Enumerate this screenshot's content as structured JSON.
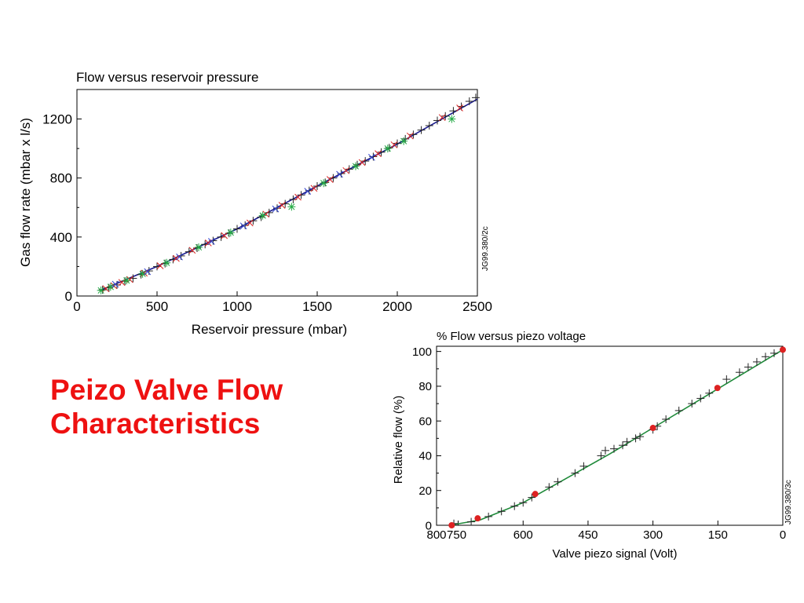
{
  "slide": {
    "title_line1": "Peizo Valve Flow",
    "title_line2": "Characteristics"
  },
  "colors": {
    "title": "#ee1111",
    "fit_line_chart1": "#1a1a8c",
    "fit_line_chart2": "#1f8a3a",
    "marker_red": "#dd2222",
    "marker_green": "#22aa44",
    "marker_black": "#222222"
  },
  "chart_data": [
    {
      "type": "scatter",
      "title": "Flow versus reservoir pressure",
      "xlabel": "Reservoir pressure (mbar)",
      "ylabel": "Gas flow rate (mbar x l/s)",
      "side_label": "JG99.380/2c",
      "xlim": [
        0,
        2500
      ],
      "ylim": [
        0,
        1400
      ],
      "xticks": [
        0,
        500,
        1000,
        1500,
        2000,
        2500
      ],
      "yticks": [
        0,
        400,
        800,
        1200
      ],
      "grid": false,
      "legend": "none",
      "fit_line": [
        [
          150,
          40
        ],
        [
          500,
          200
        ],
        [
          1000,
          455
        ],
        [
          1500,
          745
        ],
        [
          2000,
          1030
        ],
        [
          2500,
          1335
        ]
      ],
      "series": [
        {
          "marker": "plus",
          "color": "#222222",
          "points": [
            [
              160,
              42
            ],
            [
              200,
              55
            ],
            [
              250,
              75
            ],
            [
              300,
              100
            ],
            [
              350,
              120
            ],
            [
              400,
              145
            ],
            [
              450,
              170
            ],
            [
              500,
              200
            ],
            [
              550,
              220
            ],
            [
              600,
              248
            ],
            [
              650,
              272
            ],
            [
              700,
              300
            ],
            [
              750,
              325
            ],
            [
              800,
              350
            ],
            [
              850,
              375
            ],
            [
              900,
              400
            ],
            [
              950,
              425
            ],
            [
              1000,
              455
            ],
            [
              1050,
              480
            ],
            [
              1100,
              510
            ],
            [
              1150,
              535
            ],
            [
              1200,
              565
            ],
            [
              1250,
              595
            ],
            [
              1300,
              625
            ],
            [
              1350,
              655
            ],
            [
              1400,
              685
            ],
            [
              1450,
              715
            ],
            [
              1500,
              745
            ],
            [
              1550,
              770
            ],
            [
              1600,
              800
            ],
            [
              1650,
              830
            ],
            [
              1700,
              860
            ],
            [
              1750,
              890
            ],
            [
              1800,
              915
            ],
            [
              1850,
              945
            ],
            [
              1900,
              975
            ],
            [
              1950,
              1005
            ],
            [
              2000,
              1035
            ],
            [
              2050,
              1065
            ],
            [
              2100,
              1095
            ],
            [
              2150,
              1125
            ],
            [
              2200,
              1155
            ],
            [
              2250,
              1190
            ],
            [
              2300,
              1220
            ],
            [
              2350,
              1255
            ],
            [
              2400,
              1285
            ],
            [
              2450,
              1320
            ],
            [
              2490,
              1345
            ]
          ]
        },
        {
          "marker": "cross",
          "color": "#dd2222",
          "points": [
            [
              180,
              50
            ],
            [
              230,
              70
            ],
            [
              280,
              92
            ],
            [
              330,
              112
            ],
            [
              420,
              155
            ],
            [
              520,
              205
            ],
            [
              620,
              255
            ],
            [
              720,
              310
            ],
            [
              820,
              360
            ],
            [
              920,
              410
            ],
            [
              1080,
              495
            ],
            [
              1180,
              555
            ],
            [
              1280,
              615
            ],
            [
              1380,
              670
            ],
            [
              1480,
              730
            ],
            [
              1580,
              790
            ],
            [
              1680,
              850
            ],
            [
              1780,
              905
            ],
            [
              1880,
              965
            ],
            [
              1980,
              1025
            ],
            [
              2080,
              1085
            ],
            [
              2280,
              1210
            ],
            [
              2390,
              1275
            ]
          ]
        },
        {
          "marker": "asterisk",
          "color": "#22aa44",
          "points": [
            [
              150,
              38
            ],
            [
              210,
              62
            ],
            [
              310,
              105
            ],
            [
              410,
              150
            ],
            [
              560,
              225
            ],
            [
              760,
              330
            ],
            [
              960,
              430
            ],
            [
              1160,
              545
            ],
            [
              1340,
              605
            ],
            [
              1540,
              765
            ],
            [
              1740,
              880
            ],
            [
              1940,
              1000
            ],
            [
              2040,
              1050
            ],
            [
              2340,
              1200
            ]
          ]
        },
        {
          "marker": "cross",
          "color": "#3344cc",
          "points": [
            [
              240,
              80
            ],
            [
              440,
              165
            ],
            [
              640,
              265
            ],
            [
              840,
              370
            ],
            [
              1040,
              475
            ],
            [
              1240,
              590
            ],
            [
              1440,
              710
            ],
            [
              1640,
              825
            ],
            [
              1840,
              940
            ]
          ]
        }
      ]
    },
    {
      "type": "scatter",
      "title": "% Flow versus piezo voltage",
      "xlabel": "Valve piezo signal (Volt)",
      "ylabel": "Relative flow (%)",
      "side_label": "JG99.380/3c",
      "xlim": [
        800,
        0
      ],
      "ylim": [
        0,
        103
      ],
      "xticks": [
        800,
        750,
        600,
        450,
        300,
        150,
        0
      ],
      "yticks": [
        0,
        20,
        40,
        60,
        80,
        100
      ],
      "grid": false,
      "legend": "none",
      "fit_line": [
        [
          770,
          0
        ],
        [
          700,
          3
        ],
        [
          600,
          13
        ],
        [
          500,
          27
        ],
        [
          400,
          41
        ],
        [
          300,
          56
        ],
        [
          200,
          71
        ],
        [
          100,
          86
        ],
        [
          0,
          101
        ]
      ],
      "series": [
        {
          "marker": "plus",
          "color": "#222222",
          "points": [
            [
              760,
              1
            ],
            [
              720,
              2
            ],
            [
              680,
              5
            ],
            [
              650,
              8
            ],
            [
              620,
              11
            ],
            [
              600,
              13
            ],
            [
              580,
              16
            ],
            [
              540,
              22
            ],
            [
              520,
              25
            ],
            [
              480,
              30
            ],
            [
              460,
              34
            ],
            [
              420,
              40
            ],
            [
              410,
              43
            ],
            [
              390,
              44
            ],
            [
              370,
              46
            ],
            [
              360,
              48
            ],
            [
              340,
              50
            ],
            [
              330,
              51
            ],
            [
              300,
              55
            ],
            [
              290,
              57
            ],
            [
              270,
              61
            ],
            [
              240,
              66
            ],
            [
              210,
              70
            ],
            [
              190,
              73
            ],
            [
              170,
              76
            ],
            [
              130,
              84
            ],
            [
              100,
              88
            ],
            [
              80,
              91
            ],
            [
              60,
              94
            ],
            [
              40,
              97
            ],
            [
              20,
              99
            ]
          ]
        },
        {
          "marker": "dot",
          "color": "#dd2222",
          "points": [
            [
              765,
              0
            ],
            [
              705,
              4
            ],
            [
              572,
              18
            ],
            [
              300,
              56
            ],
            [
              151,
              79
            ],
            [
              0,
              101
            ]
          ]
        }
      ]
    }
  ]
}
